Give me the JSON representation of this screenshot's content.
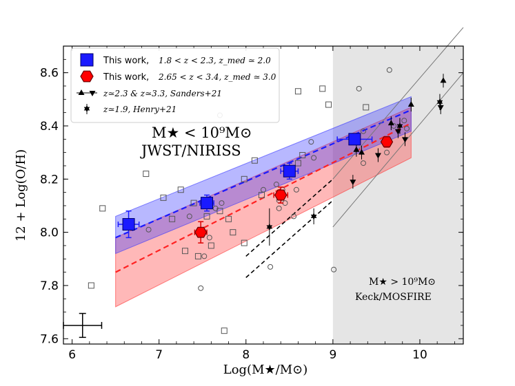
{
  "chart_data": {
    "type": "scatter",
    "xlabel": "Log(M★/M⊙)",
    "ylabel": "12 + Log(O/H)",
    "xlim": [
      5.9,
      10.5
    ],
    "ylim": [
      7.58,
      8.7
    ],
    "xticks": [
      6,
      7,
      8,
      9,
      10
    ],
    "yticks": [
      7.6,
      7.8,
      8.0,
      8.2,
      8.4,
      8.6
    ],
    "xtick_labels": [
      "6",
      "7",
      "8",
      "9",
      "10"
    ],
    "ytick_labels": [
      "7.6",
      "7.8",
      "8.0",
      "8.2",
      "8.4",
      "8.6"
    ],
    "legend_position": "top-left",
    "shaded_region": {
      "xmin": 9.0,
      "xmax": 10.5,
      "color": "#e5e5e5"
    },
    "legend": [
      {
        "label": "This work,",
        "math": "1.8 < z < 2.3,  z_med ≃ 2.0",
        "color": "#1a1aff",
        "marker": "square"
      },
      {
        "label": "This work,",
        "math": "2.65 < z < 3.4,  z_med ≃ 3.0",
        "color": "#ff0000",
        "marker": "hexagon"
      },
      {
        "label": "",
        "math": "z≃2.3 & z≃3.3, Sanders+21",
        "color": "#000000",
        "marker": "triangles"
      },
      {
        "label": "",
        "math": "z≃1.9, Henry+21",
        "color": "#000000",
        "marker": "star"
      }
    ],
    "annotations": {
      "main_line1": "M★ < 10⁹M⊙",
      "main_line2": "JWST/NIRISS",
      "corner_line1": "M★ > 10⁹M⊙",
      "corner_line2": "Keck/MOSFIRE"
    },
    "series": [
      {
        "name": "This work z~2.0 (stacks)",
        "color": "#1a1aff",
        "marker": "square",
        "points": [
          {
            "x": 6.65,
            "y": 8.03,
            "xerr": 0.12,
            "yerr": 0.05
          },
          {
            "x": 7.55,
            "y": 8.11,
            "xerr": 0.08,
            "yerr": 0.03
          },
          {
            "x": 8.5,
            "y": 8.23,
            "xerr": 0.1,
            "yerr": 0.03
          },
          {
            "x": 9.25,
            "y": 8.35,
            "xerr": 0.2,
            "yerr": 0.02
          }
        ],
        "fit": {
          "x": [
            6.5,
            9.9
          ],
          "y": [
            7.98,
            8.46
          ]
        },
        "band_upper": [
          8.06,
          8.51
        ],
        "band_lower": [
          7.92,
          8.38
        ]
      },
      {
        "name": "This work z~3.0 (stacks)",
        "color": "#ff0000",
        "marker": "hexagon",
        "points": [
          {
            "x": 7.48,
            "y": 8.0,
            "xerr": 0.07,
            "yerr": 0.04
          },
          {
            "x": 8.4,
            "y": 8.14,
            "xerr": 0.08,
            "yerr": 0.03
          },
          {
            "x": 9.62,
            "y": 8.34,
            "xerr": 0.05,
            "yerr": 0.02
          }
        ],
        "fit": {
          "x": [
            6.5,
            9.9
          ],
          "y": [
            7.85,
            8.41
          ]
        },
        "band_upper": [
          7.98,
          8.47
        ],
        "band_lower": [
          7.72,
          8.28
        ]
      },
      {
        "name": "Sanders+21",
        "color": "#000000",
        "marker": "triangle",
        "points": [
          {
            "x": 9.27,
            "y": 8.31,
            "dir": "up"
          },
          {
            "x": 9.33,
            "y": 8.3,
            "dir": "up"
          },
          {
            "x": 9.67,
            "y": 8.41,
            "dir": "up"
          },
          {
            "x": 9.9,
            "y": 8.48,
            "dir": "up"
          },
          {
            "x": 10.27,
            "y": 8.57,
            "dir": "up"
          },
          {
            "x": 9.23,
            "y": 8.19,
            "dir": "down"
          },
          {
            "x": 9.52,
            "y": 8.29,
            "dir": "down"
          },
          {
            "x": 9.75,
            "y": 8.38,
            "dir": "down"
          },
          {
            "x": 9.83,
            "y": 8.35,
            "dir": "down"
          },
          {
            "x": 10.24,
            "y": 8.47,
            "dir": "down"
          }
        ],
        "fit_lines": [
          {
            "x": [
              9.0,
              10.5
            ],
            "y": [
              8.2,
              8.77
            ]
          },
          {
            "x": [
              9.0,
              10.5
            ],
            "y": [
              8.02,
              8.6
            ]
          }
        ]
      },
      {
        "name": "Henry+21",
        "color": "#000000",
        "marker": "star",
        "points": [
          {
            "x": 8.27,
            "y": 8.02,
            "yerr": 0.07
          },
          {
            "x": 8.78,
            "y": 8.06,
            "yerr": 0.03
          },
          {
            "x": 9.77,
            "y": 8.4,
            "yerr": 0.03
          },
          {
            "x": 10.23,
            "y": 8.49,
            "yerr": 0.03
          }
        ],
        "fit_lines": [
          {
            "x": [
              8.0,
              9.0
            ],
            "y": [
              7.91,
              8.2
            ]
          },
          {
            "x": [
              8.0,
              9.0
            ],
            "y": [
              7.83,
              8.12
            ]
          }
        ]
      },
      {
        "name": "Individual galaxies (open squares)",
        "color": "#555555",
        "marker": "open-square",
        "points": [
          {
            "x": 6.35,
            "y": 8.09
          },
          {
            "x": 6.85,
            "y": 8.22
          },
          {
            "x": 7.05,
            "y": 8.13
          },
          {
            "x": 7.25,
            "y": 8.16
          },
          {
            "x": 7.4,
            "y": 8.11
          },
          {
            "x": 7.15,
            "y": 8.05
          },
          {
            "x": 7.3,
            "y": 7.93
          },
          {
            "x": 7.45,
            "y": 7.91
          },
          {
            "x": 7.55,
            "y": 8.06
          },
          {
            "x": 7.7,
            "y": 8.08
          },
          {
            "x": 7.8,
            "y": 8.05
          },
          {
            "x": 7.85,
            "y": 8.0
          },
          {
            "x": 7.6,
            "y": 7.95
          },
          {
            "x": 7.75,
            "y": 7.63
          },
          {
            "x": 7.98,
            "y": 8.2
          },
          {
            "x": 8.1,
            "y": 8.27
          },
          {
            "x": 8.18,
            "y": 8.14
          },
          {
            "x": 8.6,
            "y": 8.26
          },
          {
            "x": 8.65,
            "y": 8.29
          },
          {
            "x": 8.6,
            "y": 8.53
          },
          {
            "x": 8.88,
            "y": 8.54
          },
          {
            "x": 7.98,
            "y": 7.96
          },
          {
            "x": 6.22,
            "y": 7.8
          },
          {
            "x": 8.95,
            "y": 8.48
          },
          {
            "x": 9.38,
            "y": 8.47
          }
        ]
      },
      {
        "name": "Individual galaxies (open circles)",
        "color": "#555555",
        "marker": "open-circle",
        "points": [
          {
            "x": 6.88,
            "y": 8.01
          },
          {
            "x": 7.48,
            "y": 7.79
          },
          {
            "x": 7.52,
            "y": 7.91
          },
          {
            "x": 7.58,
            "y": 7.98
          },
          {
            "x": 7.65,
            "y": 8.09
          },
          {
            "x": 7.35,
            "y": 8.06
          },
          {
            "x": 7.72,
            "y": 8.11
          },
          {
            "x": 7.7,
            "y": 8.44
          },
          {
            "x": 8.2,
            "y": 8.16
          },
          {
            "x": 8.35,
            "y": 8.18
          },
          {
            "x": 8.38,
            "y": 8.12
          },
          {
            "x": 8.42,
            "y": 8.16
          },
          {
            "x": 8.38,
            "y": 8.09
          },
          {
            "x": 8.45,
            "y": 8.11
          },
          {
            "x": 8.58,
            "y": 8.16
          },
          {
            "x": 8.55,
            "y": 8.06
          },
          {
            "x": 8.75,
            "y": 8.34
          },
          {
            "x": 8.78,
            "y": 8.28
          },
          {
            "x": 8.28,
            "y": 7.87
          },
          {
            "x": 9.01,
            "y": 7.86
          },
          {
            "x": 9.3,
            "y": 8.54
          },
          {
            "x": 9.35,
            "y": 8.26
          },
          {
            "x": 9.35,
            "y": 8.38
          },
          {
            "x": 9.65,
            "y": 8.61
          },
          {
            "x": 9.62,
            "y": 8.3
          },
          {
            "x": 9.7,
            "y": 8.4
          },
          {
            "x": 9.82,
            "y": 8.42
          },
          {
            "x": 9.85,
            "y": 8.39
          }
        ]
      }
    ],
    "typical_error": {
      "x": 6.12,
      "y": 7.65,
      "xerr": 0.22,
      "yerr": 0.045
    }
  }
}
